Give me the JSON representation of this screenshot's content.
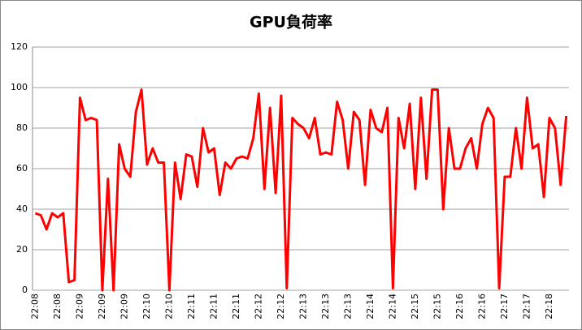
{
  "chart_data": {
    "type": "line",
    "title": "GPU負荷率",
    "categories": [
      "22:08",
      null,
      null,
      null,
      "22:08",
      null,
      null,
      null,
      "22:09",
      null,
      null,
      null,
      "22:09",
      null,
      null,
      null,
      "22:09",
      null,
      null,
      null,
      "22:10",
      null,
      null,
      null,
      "22:10",
      null,
      null,
      null,
      "22:11",
      null,
      null,
      null,
      "22:11",
      null,
      null,
      null,
      "22:11",
      null,
      null,
      null,
      "22:12",
      null,
      null,
      null,
      "22:12",
      null,
      null,
      null,
      "22:13",
      null,
      null,
      null,
      "22:13",
      null,
      null,
      null,
      "22:13",
      null,
      null,
      null,
      "22:14",
      null,
      null,
      null,
      "22:14",
      null,
      null,
      null,
      "22:15",
      null,
      null,
      null,
      "22:15",
      null,
      null,
      null,
      "22:16",
      null,
      null,
      null,
      "22:16",
      null,
      null,
      null,
      "22:17",
      null,
      null,
      null,
      "22:17",
      null,
      null,
      null,
      "22:18",
      null,
      null,
      null
    ],
    "series": [
      {
        "color": "#ff0000",
        "values": [
          38,
          37,
          30,
          38,
          36,
          38,
          4,
          5,
          95,
          84,
          85,
          84,
          0,
          55,
          0,
          72,
          60,
          56,
          88,
          99,
          62,
          70,
          63,
          63,
          0,
          63,
          45,
          67,
          66,
          51,
          80,
          68,
          70,
          47,
          63,
          60,
          65,
          66,
          65,
          75,
          97,
          50,
          90,
          48,
          96,
          1,
          85,
          82,
          80,
          75,
          85,
          67,
          68,
          67,
          93,
          84,
          60,
          88,
          84,
          52,
          89,
          80,
          78,
          90,
          1,
          85,
          70,
          92,
          50,
          95,
          55,
          99,
          99,
          40,
          80,
          60,
          60,
          70,
          75,
          60,
          82,
          90,
          85,
          1,
          56,
          56,
          80,
          60,
          95,
          70,
          72,
          46,
          85,
          80,
          52,
          86
        ]
      }
    ],
    "ylim": [
      0,
      120
    ],
    "yticks": [
      0,
      20,
      40,
      60,
      80,
      100,
      120
    ],
    "grid": true
  }
}
